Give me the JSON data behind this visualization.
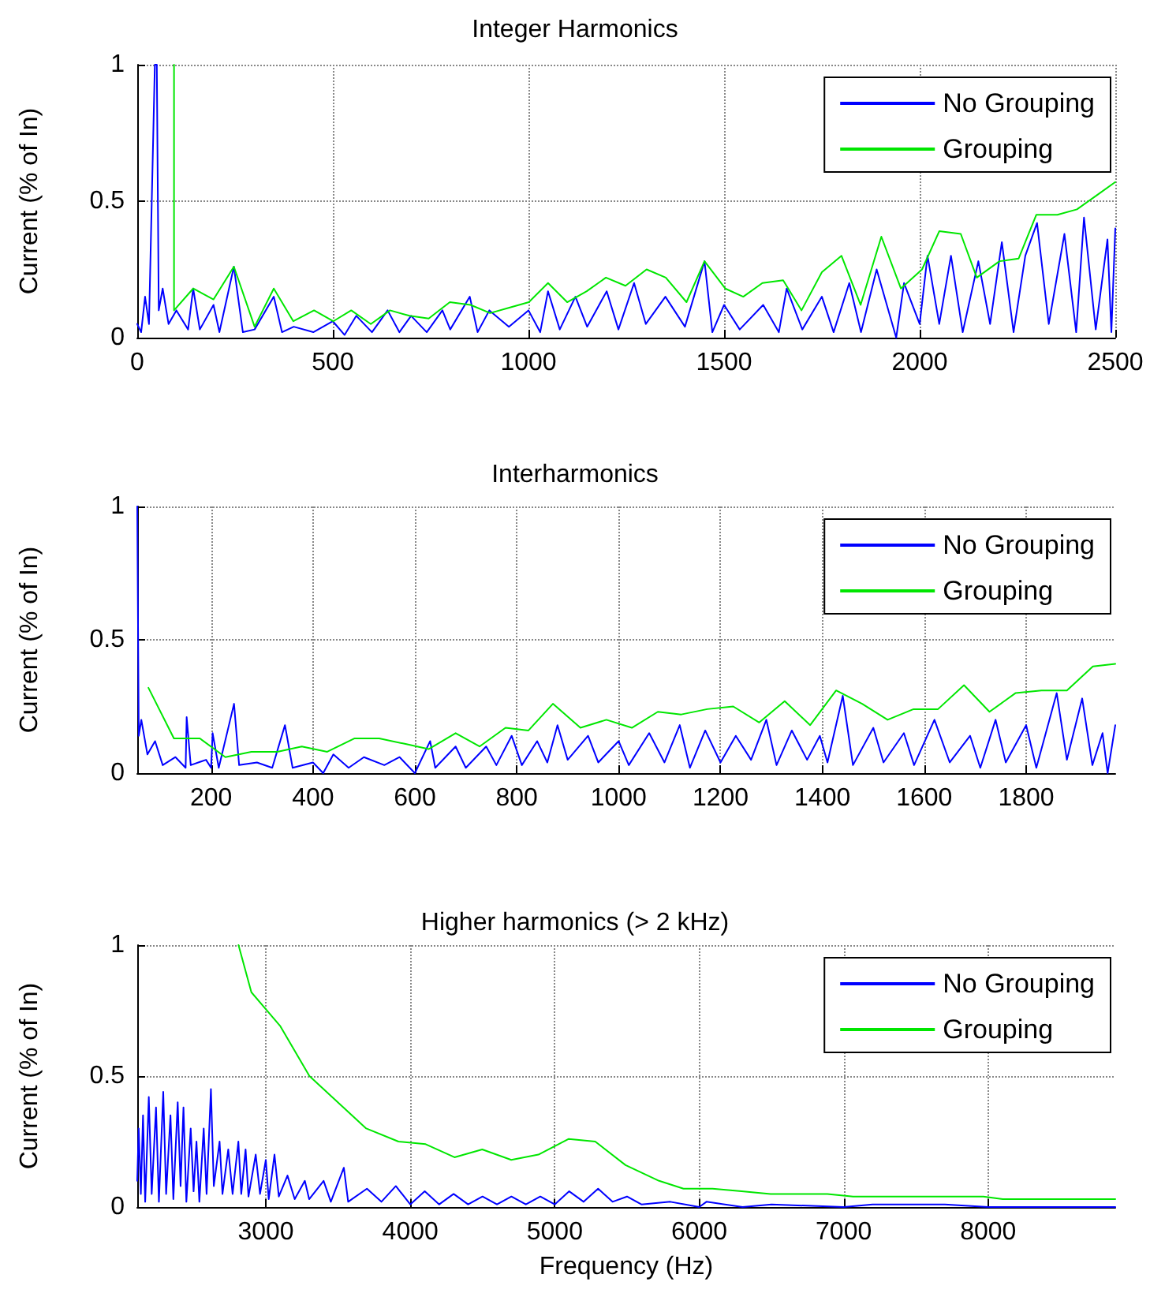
{
  "chart_data": [
    {
      "type": "line",
      "title": "Integer Harmonics",
      "ylabel": "Current (% of In)",
      "xlim": [
        0,
        2500
      ],
      "xticks": [
        0,
        500,
        1000,
        1500,
        2000,
        2500
      ],
      "ylim": [
        0,
        1
      ],
      "yticks": [
        0,
        0.5,
        1
      ],
      "grid": true,
      "legend": "top right",
      "marker": "none",
      "line_style": "solid",
      "series": [
        {
          "name": "No Grouping",
          "color": "#0000ff",
          "x": [
            0,
            10,
            20,
            30,
            45,
            50,
            55,
            65,
            80,
            100,
            130,
            143,
            160,
            195,
            210,
            247,
            270,
            300,
            349,
            370,
            400,
            450,
            500,
            530,
            560,
            600,
            640,
            670,
            700,
            740,
            780,
            800,
            850,
            870,
            900,
            950,
            1000,
            1030,
            1050,
            1080,
            1120,
            1150,
            1200,
            1230,
            1270,
            1300,
            1350,
            1400,
            1450,
            1470,
            1500,
            1540,
            1600,
            1640,
            1660,
            1700,
            1750,
            1780,
            1820,
            1850,
            1890,
            1940,
            1960,
            2000,
            2020,
            2050,
            2080,
            2110,
            2150,
            2180,
            2210,
            2240,
            2270,
            2300,
            2330,
            2370,
            2400,
            2420,
            2450,
            2480,
            2490,
            2500
          ],
          "values": [
            0.05,
            0.02,
            0.15,
            0.05,
            1,
            1,
            0.1,
            0.18,
            0.05,
            0.1,
            0.03,
            0.18,
            0.03,
            0.12,
            0.02,
            0.26,
            0.02,
            0.03,
            0.15,
            0.02,
            0.04,
            0.02,
            0.06,
            0.01,
            0.08,
            0.02,
            0.1,
            0.02,
            0.08,
            0.02,
            0.1,
            0.03,
            0.15,
            0.02,
            0.1,
            0.04,
            0.1,
            0.02,
            0.17,
            0.03,
            0.15,
            0.04,
            0.17,
            0.03,
            0.2,
            0.05,
            0.15,
            0.04,
            0.28,
            0.02,
            0.12,
            0.03,
            0.12,
            0.02,
            0.18,
            0.03,
            0.15,
            0.02,
            0.2,
            0.02,
            0.25,
            0,
            0.2,
            0.05,
            0.3,
            0.05,
            0.3,
            0.02,
            0.28,
            0.05,
            0.35,
            0.02,
            0.3,
            0.42,
            0.05,
            0.38,
            0.02,
            0.44,
            0.03,
            0.36,
            0.02,
            0.4
          ]
        },
        {
          "name": "Grouping",
          "color": "#00e600",
          "x": [
            94,
            94,
            143,
            195,
            247,
            300,
            349,
            399,
            452,
            501,
            547,
            597,
            646,
            696,
            745,
            799,
            852,
            902,
            951,
            1001,
            1050,
            1099,
            1149,
            1198,
            1248,
            1302,
            1351,
            1404,
            1450,
            1503,
            1549,
            1598,
            1651,
            1698,
            1750,
            1800,
            1849,
            1902,
            1952,
            2006,
            2050,
            2105,
            2146,
            2204,
            2253,
            2298,
            2352,
            2402,
            2451,
            2500
          ],
          "values": [
            1,
            0.1,
            0.18,
            0.14,
            0.26,
            0.04,
            0.18,
            0.06,
            0.1,
            0.06,
            0.1,
            0.05,
            0.1,
            0.08,
            0.07,
            0.13,
            0.12,
            0.09,
            0.11,
            0.13,
            0.2,
            0.13,
            0.17,
            0.22,
            0.19,
            0.25,
            0.22,
            0.13,
            0.28,
            0.18,
            0.15,
            0.2,
            0.21,
            0.1,
            0.24,
            0.3,
            0.12,
            0.37,
            0.18,
            0.25,
            0.39,
            0.38,
            0.22,
            0.28,
            0.29,
            0.45,
            0.45,
            0.47,
            0.52,
            0.57
          ]
        }
      ]
    },
    {
      "type": "line",
      "title": "Interharmonics",
      "ylabel": "Current (% of In)",
      "xlim": [
        55,
        1975
      ],
      "xticks": [
        200,
        400,
        600,
        800,
        1000,
        1200,
        1400,
        1600,
        1800
      ],
      "ylim": [
        0,
        1
      ],
      "yticks": [
        0,
        0.5,
        1
      ],
      "grid": true,
      "legend": "top right",
      "marker": "none",
      "line_style": "solid",
      "series": [
        {
          "name": "No Grouping",
          "color": "#0000ff",
          "x": [
            55,
            58,
            63,
            75,
            90,
            105,
            130,
            150,
            152,
            160,
            190,
            200,
            203,
            215,
            245,
            255,
            290,
            320,
            345,
            360,
            400,
            420,
            440,
            470,
            500,
            540,
            570,
            600,
            630,
            640,
            680,
            700,
            740,
            760,
            790,
            810,
            840,
            860,
            880,
            900,
            940,
            960,
            1000,
            1020,
            1060,
            1090,
            1120,
            1140,
            1170,
            1200,
            1230,
            1260,
            1290,
            1310,
            1340,
            1370,
            1395,
            1410,
            1440,
            1460,
            1500,
            1520,
            1560,
            1580,
            1620,
            1650,
            1690,
            1710,
            1740,
            1760,
            1800,
            1820,
            1860,
            1880,
            1910,
            1930,
            1950,
            1960,
            1975
          ],
          "values": [
            1,
            0.14,
            0.2,
            0.07,
            0.12,
            0.03,
            0.06,
            0.02,
            0.21,
            0.03,
            0.05,
            0.02,
            0.15,
            0.02,
            0.26,
            0.03,
            0.04,
            0.02,
            0.18,
            0.02,
            0.04,
            0,
            0.07,
            0.02,
            0.06,
            0.03,
            0.06,
            0,
            0.12,
            0.02,
            0.1,
            0.02,
            0.1,
            0.03,
            0.14,
            0.03,
            0.12,
            0.04,
            0.18,
            0.05,
            0.14,
            0.04,
            0.12,
            0.03,
            0.15,
            0.04,
            0.18,
            0.02,
            0.16,
            0.04,
            0.14,
            0.05,
            0.2,
            0.03,
            0.16,
            0.05,
            0.14,
            0.04,
            0.29,
            0.03,
            0.17,
            0.04,
            0.15,
            0.03,
            0.2,
            0.04,
            0.14,
            0.02,
            0.2,
            0.04,
            0.18,
            0.02,
            0.3,
            0.05,
            0.28,
            0.03,
            0.15,
            0,
            0.18
          ]
        },
        {
          "name": "Grouping",
          "color": "#00e600",
          "x": [
            77,
            127,
            178,
            228,
            279,
            330,
            378,
            428,
            481,
            530,
            580,
            627,
            680,
            727,
            778,
            823,
            871,
            925,
            976,
            1026,
            1077,
            1123,
            1174,
            1225,
            1276,
            1326,
            1376,
            1427,
            1478,
            1528,
            1579,
            1627,
            1678,
            1728,
            1779,
            1830,
            1880,
            1931,
            1975
          ],
          "values": [
            0.32,
            0.13,
            0.13,
            0.06,
            0.08,
            0.08,
            0.1,
            0.08,
            0.13,
            0.13,
            0.11,
            0.09,
            0.15,
            0.1,
            0.17,
            0.16,
            0.26,
            0.17,
            0.2,
            0.17,
            0.23,
            0.22,
            0.24,
            0.25,
            0.19,
            0.27,
            0.18,
            0.31,
            0.26,
            0.2,
            0.24,
            0.24,
            0.33,
            0.23,
            0.3,
            0.31,
            0.31,
            0.4,
            0.41
          ]
        }
      ]
    },
    {
      "type": "line",
      "title": "Higher harmonics (> 2 kHz)",
      "xlabel": "Frequency (Hz)",
      "ylabel": "Current (% of In)",
      "xlim": [
        2110,
        8880
      ],
      "xticks": [
        3000,
        4000,
        5000,
        6000,
        7000,
        8000
      ],
      "ylim": [
        0,
        1
      ],
      "yticks": [
        0,
        0.5,
        1
      ],
      "grid": true,
      "legend": "top right",
      "marker": "none",
      "line_style": "solid",
      "series": [
        {
          "name": "No Grouping",
          "color": "#0000ff",
          "x": [
            2110,
            2120,
            2135,
            2150,
            2165,
            2190,
            2210,
            2240,
            2260,
            2290,
            2310,
            2340,
            2360,
            2390,
            2410,
            2430,
            2450,
            2480,
            2500,
            2520,
            2540,
            2570,
            2590,
            2620,
            2640,
            2680,
            2700,
            2740,
            2770,
            2810,
            2830,
            2860,
            2880,
            2930,
            2960,
            3000,
            3020,
            3060,
            3090,
            3150,
            3200,
            3270,
            3300,
            3400,
            3450,
            3540,
            3570,
            3700,
            3800,
            3900,
            4000,
            4100,
            4200,
            4300,
            4400,
            4500,
            4600,
            4700,
            4800,
            4900,
            5000,
            5100,
            5200,
            5300,
            5400,
            5500,
            5600,
            5800,
            6000,
            6050,
            6300,
            6500,
            7000,
            7200,
            7700,
            8000,
            8880
          ],
          "values": [
            0.1,
            0.3,
            0.05,
            0.35,
            0.02,
            0.42,
            0.05,
            0.38,
            0.02,
            0.44,
            0.05,
            0.35,
            0.03,
            0.4,
            0.08,
            0.38,
            0.02,
            0.3,
            0.06,
            0.25,
            0.02,
            0.3,
            0.05,
            0.45,
            0.08,
            0.25,
            0.05,
            0.22,
            0.05,
            0.25,
            0.05,
            0.22,
            0.04,
            0.2,
            0.05,
            0.18,
            0.03,
            0.2,
            0.04,
            0.12,
            0.03,
            0.1,
            0.03,
            0.1,
            0.02,
            0.15,
            0.02,
            0.07,
            0.02,
            0.08,
            0.01,
            0.06,
            0.01,
            0.05,
            0.01,
            0.04,
            0.01,
            0.04,
            0.01,
            0.04,
            0.01,
            0.06,
            0.02,
            0.07,
            0.02,
            0.04,
            0.01,
            0.02,
            0,
            0.02,
            0,
            0.01,
            0,
            0.01,
            0.01,
            0,
            0
          ]
        },
        {
          "name": "Grouping",
          "color": "#00e600",
          "x": [
            2811,
            2900,
            3101,
            3302,
            3695,
            3918,
            4106,
            4306,
            4498,
            4699,
            4887,
            5097,
            5280,
            5490,
            5722,
            5891,
            6092,
            6293,
            6494,
            6887,
            7065,
            7967,
            8101,
            8880
          ],
          "values": [
            1,
            0.82,
            0.69,
            0.5,
            0.3,
            0.25,
            0.24,
            0.19,
            0.22,
            0.18,
            0.2,
            0.26,
            0.25,
            0.16,
            0.1,
            0.07,
            0.07,
            0.06,
            0.05,
            0.05,
            0.04,
            0.04,
            0.03,
            0.03
          ]
        }
      ]
    }
  ]
}
